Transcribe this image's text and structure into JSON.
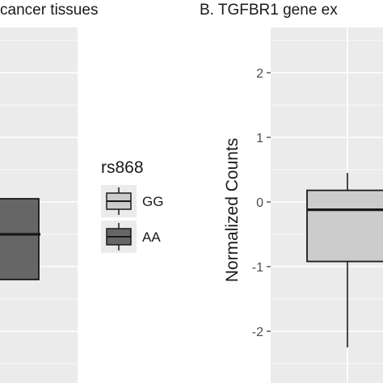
{
  "chart_data": [
    {
      "panel": "A",
      "title": "cancer tissues",
      "type": "box",
      "ylabel": "",
      "ylim": [
        -2.8,
        2.7
      ],
      "y_ticks": [],
      "boxes": [
        {
          "group": "AA",
          "q1": -1.2,
          "median": -0.5,
          "q3": 0.05,
          "fill": "#666666"
        }
      ]
    },
    {
      "panel": "B",
      "title": "B. TGFBR1 gene ex",
      "type": "box",
      "ylabel": "Normalized Counts",
      "ylim": [
        -2.8,
        2.7
      ],
      "y_ticks": [
        2,
        1,
        0,
        -1,
        -2
      ],
      "y_tick_labels": [
        "2",
        "1",
        "0",
        "-1",
        "-2"
      ],
      "boxes": [
        {
          "group": "GG",
          "whisker_low": -2.25,
          "q1": -0.92,
          "median": -0.12,
          "q3": 0.18,
          "whisker_high": 0.45,
          "fill": "#cccccc"
        }
      ]
    }
  ],
  "legend": {
    "title": "rs868",
    "items": [
      {
        "label": "GG",
        "fill": "#cccccc"
      },
      {
        "label": "AA",
        "fill": "#666666"
      }
    ]
  },
  "colors": {
    "panel_background": "#ebebeb",
    "gridline": "#ffffff",
    "box_outline": "#1a1a1a"
  }
}
